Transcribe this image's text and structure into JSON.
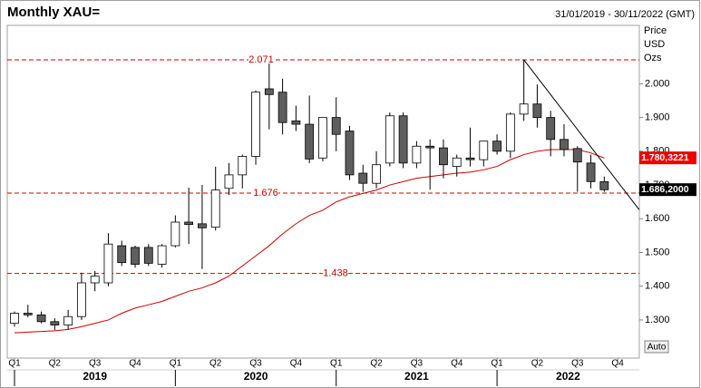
{
  "chart_data": {
    "type": "candlestick",
    "title": "Monthly XAU=",
    "subtitle": "31/01/2019 - 30/11/2022 (GMT)",
    "axis_title_lines": [
      "Price",
      "USD",
      "Ozs"
    ],
    "open": [
      1290,
      1320,
      1315,
      1295,
      1285,
      1310,
      1410,
      1410,
      1520,
      1515,
      1515,
      1465,
      1520,
      1590,
      1585,
      1575,
      1690,
      1730,
      1785,
      1985,
      1975,
      1890,
      1880,
      1780,
      1900,
      1860,
      1735,
      1705,
      1765,
      1905,
      1765,
      1815,
      1810,
      1755,
      1780,
      1775,
      1830,
      1800,
      1910,
      1940,
      1900,
      1835,
      1808,
      1765,
      1710
    ],
    "high": [
      1325,
      1345,
      1325,
      1305,
      1330,
      1440,
      1445,
      1557,
      1535,
      1520,
      1525,
      1525,
      1610,
      1692,
      1700,
      1754,
      1765,
      1790,
      1980,
      2060,
      2015,
      1935,
      1965,
      1900,
      1960,
      1875,
      1760,
      1800,
      1915,
      1915,
      1830,
      1835,
      1835,
      1790,
      1870,
      1830,
      1850,
      1915,
      2071,
      1998,
      1920,
      1880,
      1815,
      1790,
      1725
    ],
    "low": [
      1280,
      1308,
      1290,
      1270,
      1272,
      1300,
      1385,
      1400,
      1460,
      1455,
      1460,
      1455,
      1515,
      1525,
      1451,
      1565,
      1670,
      1690,
      1760,
      1865,
      1850,
      1860,
      1765,
      1770,
      1800,
      1715,
      1680,
      1690,
      1755,
      1750,
      1750,
      1686,
      1720,
      1725,
      1755,
      1755,
      1790,
      1780,
      1890,
      1870,
      1785,
      1785,
      1680,
      1690,
      1680
    ],
    "close": [
      1320,
      1315,
      1295,
      1285,
      1310,
      1410,
      1430,
      1525,
      1470,
      1465,
      1468,
      1520,
      1590,
      1583,
      1573,
      1685,
      1730,
      1785,
      1975,
      1968,
      1885,
      1880,
      1777,
      1900,
      1850,
      1730,
      1705,
      1760,
      1905,
      1765,
      1815,
      1810,
      1760,
      1780,
      1775,
      1830,
      1800,
      1910,
      1940,
      1900,
      1835,
      1805,
      1768,
      1710,
      1686
    ],
    "up_color": "#ffffff",
    "down_color": "#5e5e5e",
    "moving_average": {
      "color": "#cc0000",
      "values": [
        1262,
        1264,
        1266,
        1268,
        1272,
        1280,
        1290,
        1300,
        1320,
        1335,
        1345,
        1355,
        1370,
        1385,
        1395,
        1410,
        1430,
        1460,
        1490,
        1520,
        1555,
        1585,
        1610,
        1625,
        1650,
        1665,
        1675,
        1685,
        1700,
        1710,
        1720,
        1725,
        1730,
        1735,
        1738,
        1745,
        1755,
        1775,
        1790,
        1800,
        1805,
        1805,
        1805,
        1795,
        1780
      ]
    },
    "hlines": [
      {
        "value": 2071,
        "label": "2.071"
      },
      {
        "value": 1676,
        "label": "1.676"
      },
      {
        "value": 1438,
        "label": "1.438"
      }
    ],
    "hline_color": "#cc0000",
    "trendline": {
      "start": [
        38,
        2071
      ],
      "end": [
        46.6,
        1627
      ],
      "color": "#000000"
    },
    "last_values": [
      {
        "value": 1780.3221,
        "label": "1.780,3221",
        "color": "#ee0000",
        "text_color": "#ffffff"
      },
      {
        "value": 1686.2,
        "label": "1.686,2000",
        "color": "#000000",
        "text_color": "#ffffff"
      }
    ],
    "ylim": [
      1187,
      2173
    ],
    "yticks": [
      {
        "value": 1300,
        "label": "1.300"
      },
      {
        "value": 1400,
        "label": "1.400"
      },
      {
        "value": 1500,
        "label": "1.500"
      },
      {
        "value": 1600,
        "label": "1.600"
      },
      {
        "value": 1700,
        "label": "1.700"
      },
      {
        "value": 1800,
        "label": "1.800"
      },
      {
        "value": 1900,
        "label": "1.900"
      },
      {
        "value": 2000,
        "label": "2.000"
      }
    ],
    "quarter_labels": [
      "Q1",
      "Q2",
      "Q3",
      "Q4",
      "Q1",
      "Q2",
      "Q3",
      "Q4",
      "Q1",
      "Q2",
      "Q3",
      "Q4",
      "Q1",
      "Q2",
      "Q3",
      "Q4"
    ],
    "year_labels": [
      "2019",
      "2020",
      "2021",
      "2022"
    ],
    "button": "Auto"
  }
}
